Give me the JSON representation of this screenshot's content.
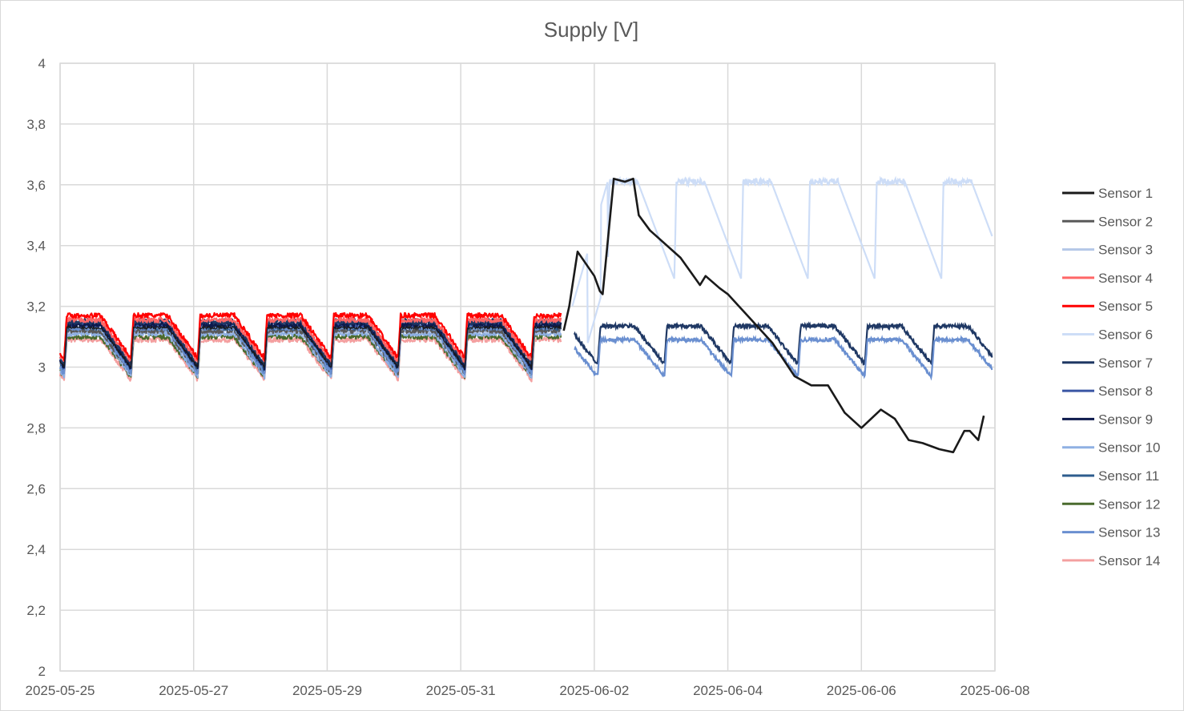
{
  "chart_data": {
    "type": "line",
    "title": "Supply [V]",
    "xlabel": "",
    "ylabel": "",
    "ylim": [
      2,
      4
    ],
    "yticks": [
      2,
      2.2,
      2.4,
      2.6,
      2.8,
      3,
      3.2,
      3.4,
      3.6,
      3.8,
      4
    ],
    "ytick_labels": [
      "2",
      "2,2",
      "2,4",
      "2,6",
      "2,8",
      "3",
      "3,2",
      "3,4",
      "3,6",
      "3,8",
      "4"
    ],
    "xlim": [
      "2025-05-25",
      "2025-06-08"
    ],
    "xtick_labels": [
      "2025-05-25",
      "2025-05-27",
      "2025-05-29",
      "2025-05-31",
      "2025-06-02",
      "2025-06-04",
      "2025-06-06",
      "2025-06-08"
    ],
    "grid": true,
    "legend_position": "right",
    "series": [
      {
        "name": "Sensor 1",
        "color": "#1a1a1a",
        "x": [
          "2025-05-25 00:00",
          "2025-06-01 13:00",
          "2025-06-01 15:00",
          "2025-06-01 18:00",
          "2025-06-02 00:00",
          "2025-06-02 02:00",
          "2025-06-02 03:00",
          "2025-06-02 07:00",
          "2025-06-02 11:00",
          "2025-06-02 14:00",
          "2025-06-02 16:00",
          "2025-06-02 20:00",
          "2025-06-03 07:00",
          "2025-06-03 14:00",
          "2025-06-03 16:00",
          "2025-06-03 21:00",
          "2025-06-04 00:00",
          "2025-06-04 08:00",
          "2025-06-04 16:00",
          "2025-06-05 00:00",
          "2025-06-05 06:00",
          "2025-06-05 12:00",
          "2025-06-05 18:00",
          "2025-06-06 00:00",
          "2025-06-06 07:00",
          "2025-06-06 12:00",
          "2025-06-06 17:00",
          "2025-06-06 22:00",
          "2025-06-07 04:00",
          "2025-06-07 09:00",
          "2025-06-07 13:00",
          "2025-06-07 15:00",
          "2025-06-07 18:00",
          "2025-06-07 20:00"
        ],
        "values": [
          3.1,
          3.12,
          3.2,
          3.38,
          3.3,
          3.25,
          3.24,
          3.62,
          3.61,
          3.62,
          3.5,
          3.45,
          3.36,
          3.27,
          3.3,
          3.26,
          3.24,
          3.16,
          3.08,
          2.97,
          2.94,
          2.94,
          2.85,
          2.8,
          2.86,
          2.83,
          2.76,
          2.75,
          2.73,
          2.72,
          2.79,
          2.79,
          2.76,
          2.84
        ]
      },
      {
        "name": "Sensor 2",
        "color": "#595959",
        "x": [
          "2025-05-25 00:00",
          "2025-06-01 12:00"
        ],
        "values": [
          3.1,
          3.12
        ]
      },
      {
        "name": "Sensor 3",
        "color": "#b4c7e7",
        "x": [
          "2025-05-25 00:00",
          "2025-06-01 12:00"
        ],
        "values": [
          3.12,
          3.14
        ]
      },
      {
        "name": "Sensor 4",
        "color": "#ff6666",
        "x": [
          "2025-05-25 00:00",
          "2025-06-01 12:00"
        ],
        "values": [
          3.14,
          3.15
        ]
      },
      {
        "name": "Sensor 5",
        "color": "#ff0000",
        "x": [
          "2025-05-25 00:00",
          "2025-06-01 12:00"
        ],
        "values": [
          3.16,
          3.18
        ]
      },
      {
        "name": "Sensor 6",
        "color": "#cdddf7",
        "x": [
          "2025-06-01 16:00",
          "2025-06-02 06:00",
          "2025-06-03 01:00",
          "2025-06-04 00:00",
          "2025-06-05 00:00",
          "2025-06-06 00:00",
          "2025-06-07 00:00",
          "2025-06-07 23:00"
        ],
        "values": [
          3.2,
          3.61,
          3.3,
          3.4,
          3.31,
          3.21,
          3.14,
          3.27
        ]
      },
      {
        "name": "Sensor 7",
        "color": "#1f3864",
        "x": [
          "2025-06-01 16:00",
          "2025-06-07 22:00"
        ],
        "values": [
          3.13,
          3.09
        ]
      },
      {
        "name": "Sensor 8",
        "color": "#3a56a5",
        "x": [
          "2025-05-25 00:00",
          "2025-06-01 12:00"
        ],
        "values": [
          3.13,
          3.14
        ]
      },
      {
        "name": "Sensor 9",
        "color": "#0d1a4d",
        "x": [
          "2025-05-25 00:00",
          "2025-06-01 12:00"
        ],
        "values": [
          3.13,
          3.14
        ]
      },
      {
        "name": "Sensor 10",
        "color": "#8fb0e3",
        "x": [
          "2025-05-25 00:00",
          "2025-06-01 12:00"
        ],
        "values": [
          3.11,
          3.12
        ]
      },
      {
        "name": "Sensor 11",
        "color": "#2e5d8e",
        "x": [
          "2025-05-25 00:00",
          "2025-06-01 12:00"
        ],
        "values": [
          3.12,
          3.13
        ]
      },
      {
        "name": "Sensor 12",
        "color": "#4a6b2e",
        "x": [
          "2025-05-25 00:00",
          "2025-06-01 12:00"
        ],
        "values": [
          3.09,
          3.1
        ]
      },
      {
        "name": "Sensor 13",
        "color": "#6a8fd0",
        "x": [
          "2025-06-01 16:00",
          "2025-06-07 23:00"
        ],
        "values": [
          3.09,
          3.04
        ]
      },
      {
        "name": "Sensor 14",
        "color": "#f4a0a0",
        "x": [
          "2025-05-25 00:00",
          "2025-06-01 12:00"
        ],
        "values": [
          3.07,
          3.09
        ]
      }
    ]
  }
}
